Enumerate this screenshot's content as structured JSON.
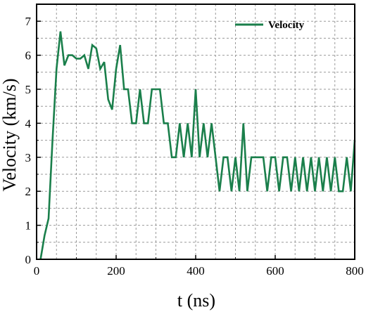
{
  "chart_data": {
    "type": "line",
    "xlabel": "t (ns)",
    "ylabel": "Velocity (km/s)",
    "xlim": [
      0,
      800
    ],
    "ylim": [
      0,
      7.5
    ],
    "x_ticks": [
      0,
      200,
      400,
      600,
      800
    ],
    "y_ticks": [
      0,
      1,
      2,
      3,
      4,
      5,
      6,
      7
    ],
    "grid": "dashed, every 50 ns on x and every 0.5 km/s on y",
    "legend_position": "top-right",
    "series": [
      {
        "name": "Velocity",
        "color": "#1a7f4b",
        "x": [
          10,
          20,
          30,
          40,
          50,
          60,
          70,
          80,
          90,
          100,
          110,
          120,
          130,
          140,
          150,
          160,
          170,
          180,
          190,
          200,
          210,
          220,
          230,
          240,
          250,
          260,
          270,
          280,
          290,
          300,
          310,
          320,
          330,
          340,
          350,
          360,
          370,
          380,
          390,
          400,
          410,
          420,
          430,
          440,
          450,
          460,
          470,
          480,
          490,
          500,
          510,
          520,
          530,
          540,
          550,
          560,
          570,
          580,
          590,
          600,
          610,
          620,
          630,
          640,
          650,
          660,
          670,
          680,
          690,
          700,
          710,
          720,
          730,
          740,
          750,
          760,
          770,
          780,
          790,
          800
        ],
        "y": [
          0,
          0.7,
          1.2,
          3.5,
          5.6,
          6.7,
          5.7,
          6.0,
          6.0,
          5.9,
          5.9,
          6.0,
          5.6,
          6.3,
          6.2,
          5.6,
          5.8,
          4.7,
          4.4,
          5.6,
          6.3,
          5.0,
          5.0,
          4.0,
          4.0,
          5.0,
          4.0,
          4.0,
          5.0,
          5.0,
          5.0,
          4.0,
          4.0,
          3.0,
          3.0,
          4.0,
          3.0,
          4.0,
          3.0,
          5.0,
          3.0,
          4.0,
          3.0,
          4.0,
          3.0,
          2.0,
          3.0,
          3.0,
          2.0,
          3.0,
          2.0,
          4.0,
          2.0,
          3.0,
          3.0,
          3.0,
          3.0,
          2.0,
          3.0,
          3.0,
          2.0,
          3.0,
          3.0,
          2.0,
          3.0,
          2.0,
          3.0,
          2.0,
          3.0,
          2.0,
          3.0,
          2.0,
          3.0,
          2.0,
          3.0,
          2.0,
          2.0,
          3.0,
          2.0,
          3.5
        ]
      }
    ]
  }
}
